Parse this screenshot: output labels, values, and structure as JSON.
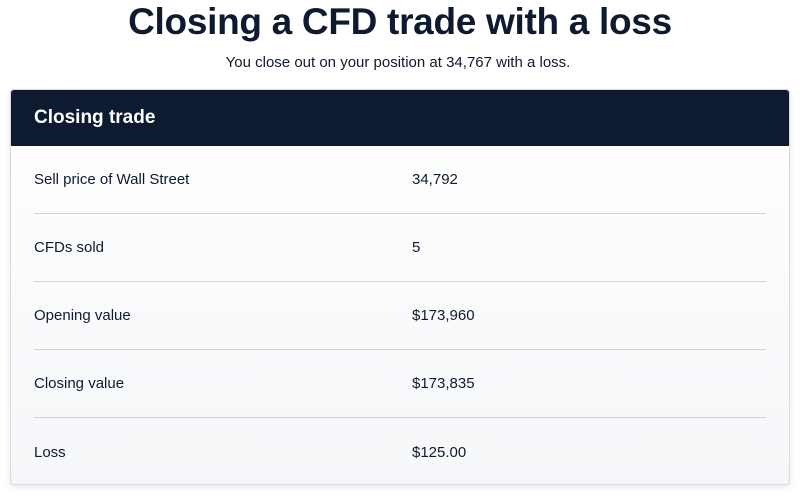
{
  "page": {
    "title": "Closing a CFD trade with a loss",
    "subtitle": "You close out on your position at 34,767 with a loss."
  },
  "card": {
    "title": "Closing trade",
    "rows": [
      {
        "label": "Sell price of Wall Street",
        "value": "34,792"
      },
      {
        "label": "CFDs sold",
        "value": "5"
      },
      {
        "label": "Opening value",
        "value": "$173,960"
      },
      {
        "label": "Closing value",
        "value": "$173,835"
      },
      {
        "label": "Loss",
        "value": "$125.00"
      }
    ]
  },
  "colors": {
    "navy": "#0e1a30",
    "border": "#d7dbe2",
    "divider": "#cfd3da"
  }
}
